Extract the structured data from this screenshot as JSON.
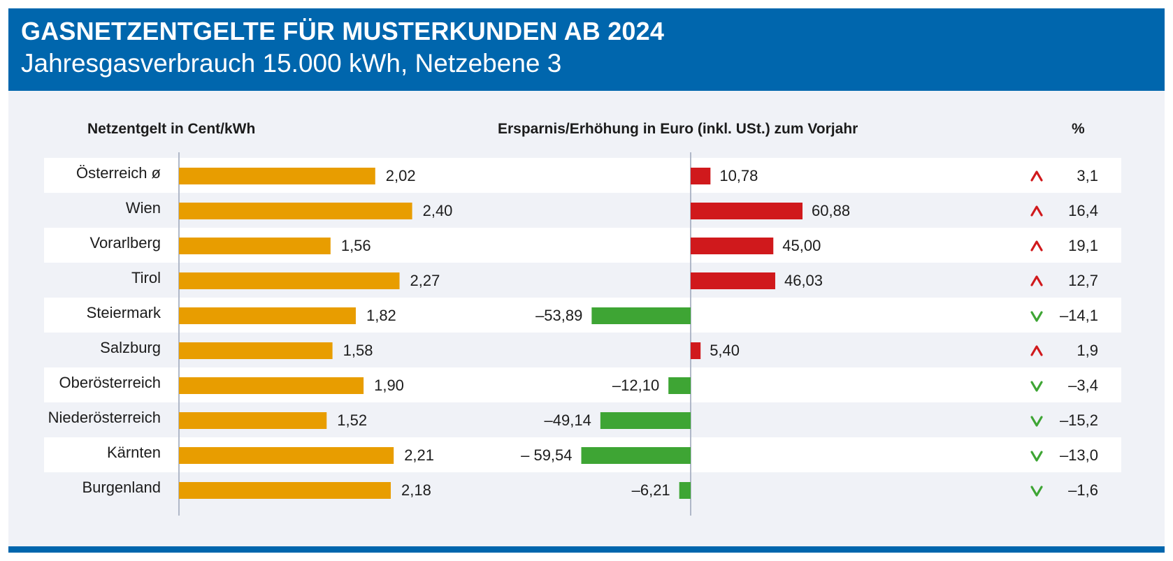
{
  "header": {
    "title": "GASNETZENTGELTE FÜR MUSTERKUNDEN AB 2024",
    "subtitle": "Jahresgasverbrauch 15.000 kWh, Netzebene 3"
  },
  "columns": {
    "left": "Netzentgelt in Cent/kWh",
    "middle": "Ersparnis/Erhöhung in Euro (inkl. USt.) zum Vorjahr",
    "right": "%"
  },
  "colors": {
    "orange": "#e89d00",
    "red": "#d0191c",
    "green": "#3ea534",
    "header_blue": "#0066ad"
  },
  "chart_data": {
    "type": "bar",
    "title": "GASNETZENTGELTE FÜR MUSTERKUNDEN AB 2024",
    "subtitle": "Jahresgasverbrauch 15.000 kWh, Netzebene 3",
    "categories": [
      "Österreich ø",
      "Wien",
      "Vorarlberg",
      "Tirol",
      "Steiermark",
      "Salzburg",
      "Oberösterreich",
      "Niederösterreich",
      "Kärnten",
      "Burgenland"
    ],
    "series": [
      {
        "name": "Netzentgelt in Cent/kWh",
        "values": [
          2.02,
          2.4,
          1.56,
          2.27,
          1.82,
          1.58,
          1.9,
          1.52,
          2.21,
          2.18
        ],
        "labels": [
          "2,02",
          "2,40",
          "1,56",
          "2,27",
          "1,82",
          "1,58",
          "1,90",
          "1,52",
          "2,21",
          "2,18"
        ],
        "xlim": [
          0,
          3.6
        ]
      },
      {
        "name": "Ersparnis/Erhöhung in Euro (inkl. USt.) zum Vorjahr",
        "values": [
          10.78,
          60.88,
          45.0,
          46.03,
          -53.89,
          5.4,
          -12.1,
          -49.14,
          -59.54,
          -6.21
        ],
        "labels": [
          "10,78",
          "60,88",
          "45,00",
          "46,03",
          "–53,89",
          "5,40",
          "–12,10",
          "–49,14",
          "– 59,54",
          "–6,21"
        ],
        "xlim": [
          -60,
          60
        ]
      },
      {
        "name": "%",
        "values": [
          3.1,
          16.4,
          19.1,
          12.7,
          -14.1,
          1.9,
          -3.4,
          -15.2,
          -13.0,
          -1.6
        ],
        "labels": [
          "3,1",
          "16,4",
          "19,1",
          "12,7",
          "–14,1",
          "1,9",
          "–3,4",
          "–15,2",
          "–13,0",
          "–1,6"
        ]
      }
    ],
    "arrow_up": "^",
    "arrow_down": "v",
    "xlabel": "",
    "ylabel": ""
  }
}
